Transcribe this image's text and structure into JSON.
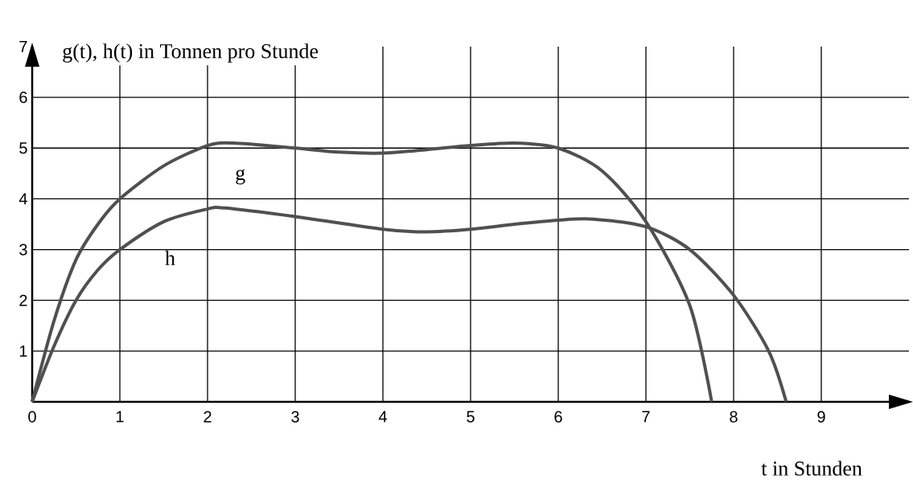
{
  "chart_data": {
    "type": "line",
    "xlabel": "t in Stunden",
    "ylabel": "g(t), h(t) in Tonnen pro Stunde",
    "xlim": [
      0,
      10
    ],
    "ylim": [
      0,
      7
    ],
    "xticks": [
      0,
      1,
      2,
      3,
      4,
      5,
      6,
      7,
      8,
      9
    ],
    "yticks": [
      1,
      2,
      3,
      4,
      5,
      6,
      7
    ],
    "grid": true,
    "legend": false,
    "marker": "none",
    "line_style": "solid",
    "series": [
      {
        "name": "g",
        "color": "#505050",
        "x": [
          0,
          0.25,
          0.5,
          0.75,
          1,
          1.5,
          2,
          2.3,
          3,
          3.5,
          4,
          4.5,
          5,
          5.5,
          6,
          6.5,
          7,
          7.5,
          7.75
        ],
        "values": [
          0,
          1.6,
          2.8,
          3.5,
          4,
          4.65,
          5.05,
          5.1,
          5,
          4.92,
          4.9,
          4.97,
          5.05,
          5.1,
          5,
          4.55,
          3.55,
          1.9,
          0
        ]
      },
      {
        "name": "h",
        "color": "#505050",
        "x": [
          0,
          0.25,
          0.5,
          0.75,
          1,
          1.5,
          2,
          2.2,
          3,
          4,
          4.5,
          5,
          5.5,
          6,
          6.4,
          7,
          7.5,
          8,
          8.4,
          8.6
        ],
        "values": [
          0,
          1.1,
          2,
          2.6,
          3,
          3.55,
          3.8,
          3.82,
          3.65,
          3.4,
          3.35,
          3.4,
          3.5,
          3.58,
          3.6,
          3.45,
          3,
          2.1,
          1,
          0
        ]
      }
    ]
  }
}
